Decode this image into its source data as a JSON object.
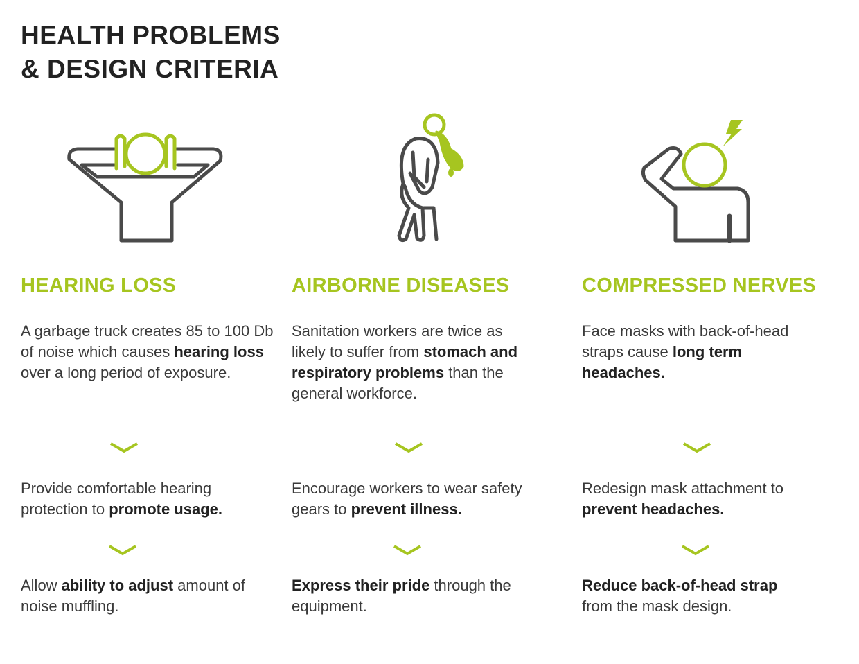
{
  "title": {
    "line1": "HEALTH PROBLEMS",
    "line2": "& DESIGN CRITERIA"
  },
  "colors": {
    "accent": "#a6c520",
    "icon_gray": "#4a4a4a",
    "text": "#3a3a3a"
  },
  "columns": [
    {
      "icon": "person-hands-behind-head-with-earmuffs-icon",
      "heading": "HEARING LOSS",
      "problem": [
        {
          "text": "A garbage truck creates 85 to 100 Db of noise which causes ",
          "bold": false
        },
        {
          "text": "hearing loss",
          "bold": true
        },
        {
          "text": " over a long period of exposure.",
          "bold": false
        }
      ],
      "criterion1": [
        {
          "text": "Provide comfortable hearing protection to ",
          "bold": false
        },
        {
          "text": "promote usage.",
          "bold": true
        }
      ],
      "criterion2": [
        {
          "text": "Allow ",
          "bold": false
        },
        {
          "text": "ability to adjust",
          "bold": true
        },
        {
          "text": " amount of noise muffling.",
          "bold": false
        }
      ]
    },
    {
      "icon": "person-vomiting-icon",
      "heading": "AIRBORNE DISEASES",
      "problem": [
        {
          "text": "Sanitation workers are twice as likely to suffer from ",
          "bold": false
        },
        {
          "text": "stomach and respiratory problems",
          "bold": true
        },
        {
          "text": " than the general workforce.",
          "bold": false
        }
      ],
      "criterion1": [
        {
          "text": "Encourage workers to wear safety gears to ",
          "bold": false
        },
        {
          "text": "prevent illness.",
          "bold": true
        }
      ],
      "criterion2": [
        {
          "text": "Express their pride",
          "bold": true
        },
        {
          "text": " through the equipment.",
          "bold": false
        }
      ]
    },
    {
      "icon": "person-headache-lightning-icon",
      "heading": "COMPRESSED NERVES",
      "problem": [
        {
          "text": "Face masks with back-of-head straps cause ",
          "bold": false
        },
        {
          "text": "long term headaches.",
          "bold": true
        }
      ],
      "criterion1": [
        {
          "text": "Redesign mask attachment to ",
          "bold": false
        },
        {
          "text": "prevent headaches.",
          "bold": true
        }
      ],
      "criterion2": [
        {
          "text": "Reduce back-of-head strap",
          "bold": true
        },
        {
          "text": " from the mask design.",
          "bold": false
        }
      ]
    }
  ]
}
